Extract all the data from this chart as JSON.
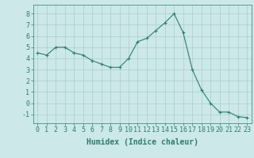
{
  "x": [
    0,
    1,
    2,
    3,
    4,
    5,
    6,
    7,
    8,
    9,
    10,
    11,
    12,
    13,
    14,
    15,
    16,
    17,
    18,
    19,
    20,
    21,
    22,
    23
  ],
  "y": [
    4.5,
    4.3,
    5.0,
    5.0,
    4.5,
    4.3,
    3.8,
    3.5,
    3.2,
    3.2,
    4.0,
    5.5,
    5.8,
    6.5,
    7.2,
    8.0,
    6.3,
    3.0,
    1.2,
    0.0,
    -0.8,
    -0.8,
    -1.2,
    -1.3
  ],
  "line_color": "#2e7d6e",
  "marker": "+",
  "marker_color": "#2e7d6e",
  "bg_color": "#cce8e8",
  "grid_color": "#aacece",
  "xlabel": "Humidex (Indice chaleur)",
  "xlim": [
    -0.5,
    23.5
  ],
  "ylim": [
    -1.8,
    8.8
  ],
  "yticks": [
    -1,
    0,
    1,
    2,
    3,
    4,
    5,
    6,
    7,
    8
  ],
  "xticks": [
    0,
    1,
    2,
    3,
    4,
    5,
    6,
    7,
    8,
    9,
    10,
    11,
    12,
    13,
    14,
    15,
    16,
    17,
    18,
    19,
    20,
    21,
    22,
    23
  ],
  "xtick_labels": [
    "0",
    "1",
    "2",
    "3",
    "4",
    "5",
    "6",
    "7",
    "8",
    "9",
    "10",
    "11",
    "12",
    "13",
    "14",
    "15",
    "16",
    "17",
    "18",
    "19",
    "20",
    "21",
    "22",
    "23"
  ],
  "label_fontsize": 7,
  "tick_fontsize": 6
}
